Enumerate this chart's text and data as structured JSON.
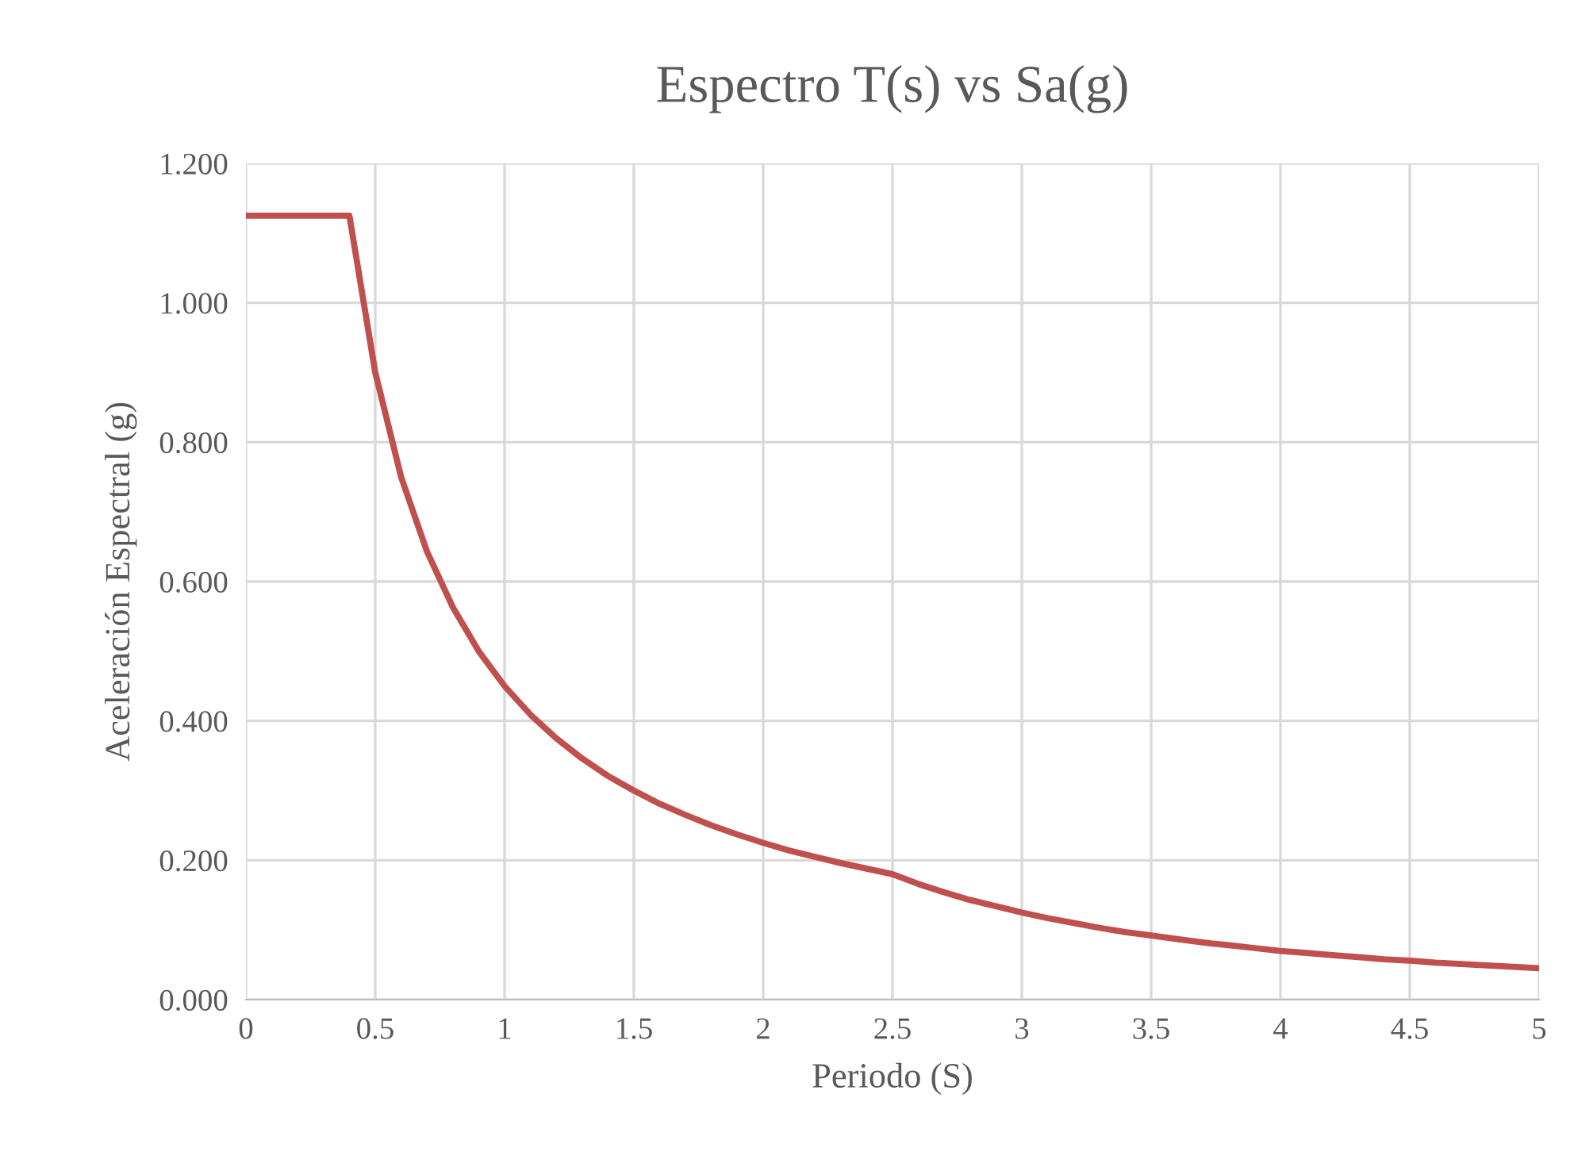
{
  "chart_data": {
    "type": "line",
    "title": "Espectro T(s) vs Sa(g)",
    "xlabel": "Periodo (S)",
    "ylabel": "Aceleración Espectral (g)",
    "x": [
      0,
      0.1,
      0.2,
      0.3,
      0.4,
      0.5,
      0.6,
      0.7,
      0.8,
      0.9,
      1.0,
      1.1,
      1.2,
      1.3,
      1.4,
      1.5,
      1.6,
      1.7,
      1.8,
      1.9,
      2.0,
      2.1,
      2.2,
      2.3,
      2.4,
      2.5,
      2.6,
      2.7,
      2.8,
      2.9,
      3.0,
      3.1,
      3.2,
      3.3,
      3.4,
      3.5,
      3.6,
      3.7,
      3.8,
      3.9,
      4.0,
      4.1,
      4.2,
      4.3,
      4.4,
      4.5,
      4.6,
      4.7,
      4.8,
      4.9,
      5.0
    ],
    "series": [
      {
        "color": "#c0504d",
        "values": [
          1.125,
          1.125,
          1.125,
          1.125,
          1.125,
          0.9,
          0.75,
          0.643,
          0.563,
          0.5,
          0.45,
          0.409,
          0.375,
          0.346,
          0.321,
          0.3,
          0.281,
          0.265,
          0.25,
          0.237,
          0.225,
          0.214,
          0.205,
          0.196,
          0.188,
          0.18,
          0.166,
          0.154,
          0.143,
          0.134,
          0.125,
          0.117,
          0.11,
          0.103,
          0.097,
          0.092,
          0.087,
          0.082,
          0.078,
          0.074,
          0.07,
          0.067,
          0.064,
          0.061,
          0.058,
          0.056,
          0.053,
          0.051,
          0.049,
          0.047,
          0.045
        ]
      }
    ],
    "xlim": [
      0,
      5
    ],
    "xticks": [
      0,
      0.5,
      1,
      1.5,
      2,
      2.5,
      3,
      3.5,
      4,
      4.5,
      5
    ],
    "ylim": [
      0,
      1.2
    ],
    "yticks": [
      {
        "value": 0,
        "label": "0.000"
      },
      {
        "value": 0.2,
        "label": "0.200"
      },
      {
        "value": 0.4,
        "label": "0.400"
      },
      {
        "value": 0.6,
        "label": "0.600"
      },
      {
        "value": 0.8,
        "label": "0.800"
      },
      {
        "value": 1.0,
        "label": "1.000"
      },
      {
        "value": 1.2,
        "label": "1.200"
      }
    ],
    "grid": true,
    "legend": false,
    "marker": "none",
    "line_style": "solid"
  }
}
